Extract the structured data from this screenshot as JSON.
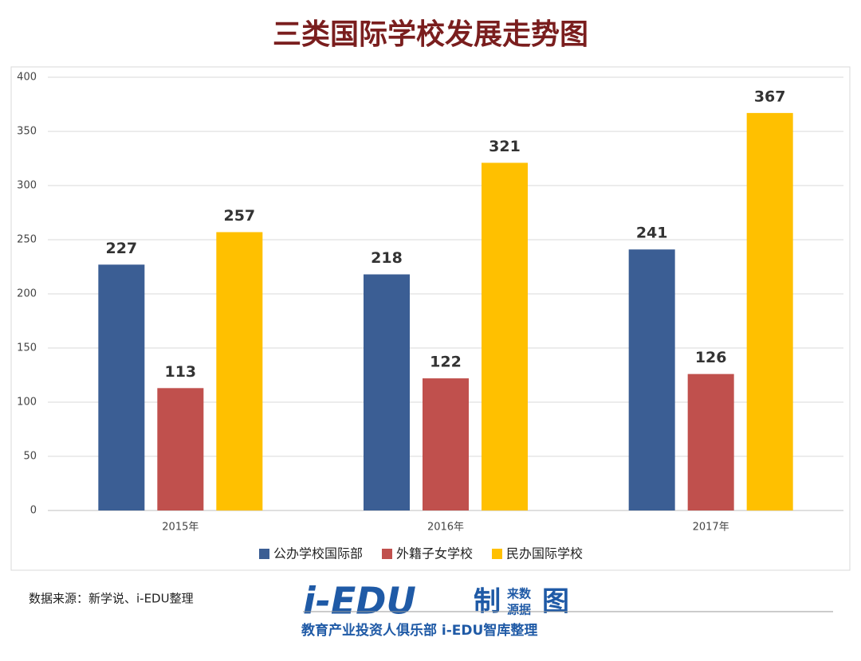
{
  "chart_data": {
    "type": "bar",
    "title": "三类国际学校发展走势图",
    "categories": [
      "2015年",
      "2016年",
      "2017年"
    ],
    "series": [
      {
        "name": "公办学校国际部",
        "color": "#3b5e94",
        "values": [
          227,
          218,
          241
        ]
      },
      {
        "name": "外籍子女学校",
        "color": "#c0504d",
        "values": [
          113,
          122,
          126
        ]
      },
      {
        "name": "民办国际学校",
        "color": "#ffc000",
        "values": [
          257,
          321,
          367
        ]
      }
    ],
    "ylim": [
      0,
      400
    ],
    "yticks": [
      0,
      50,
      100,
      150,
      200,
      250,
      300,
      350,
      400
    ],
    "grid": true,
    "legend": "bottom"
  },
  "source": "数据来源：新学说、i-EDU整理",
  "logo": {
    "brand": "i-EDU",
    "made": "制",
    "top": "来数",
    "bottom": "源据",
    "chart": "图",
    "tagline": "教育产业投资人俱乐部 i-EDU智库整理"
  }
}
